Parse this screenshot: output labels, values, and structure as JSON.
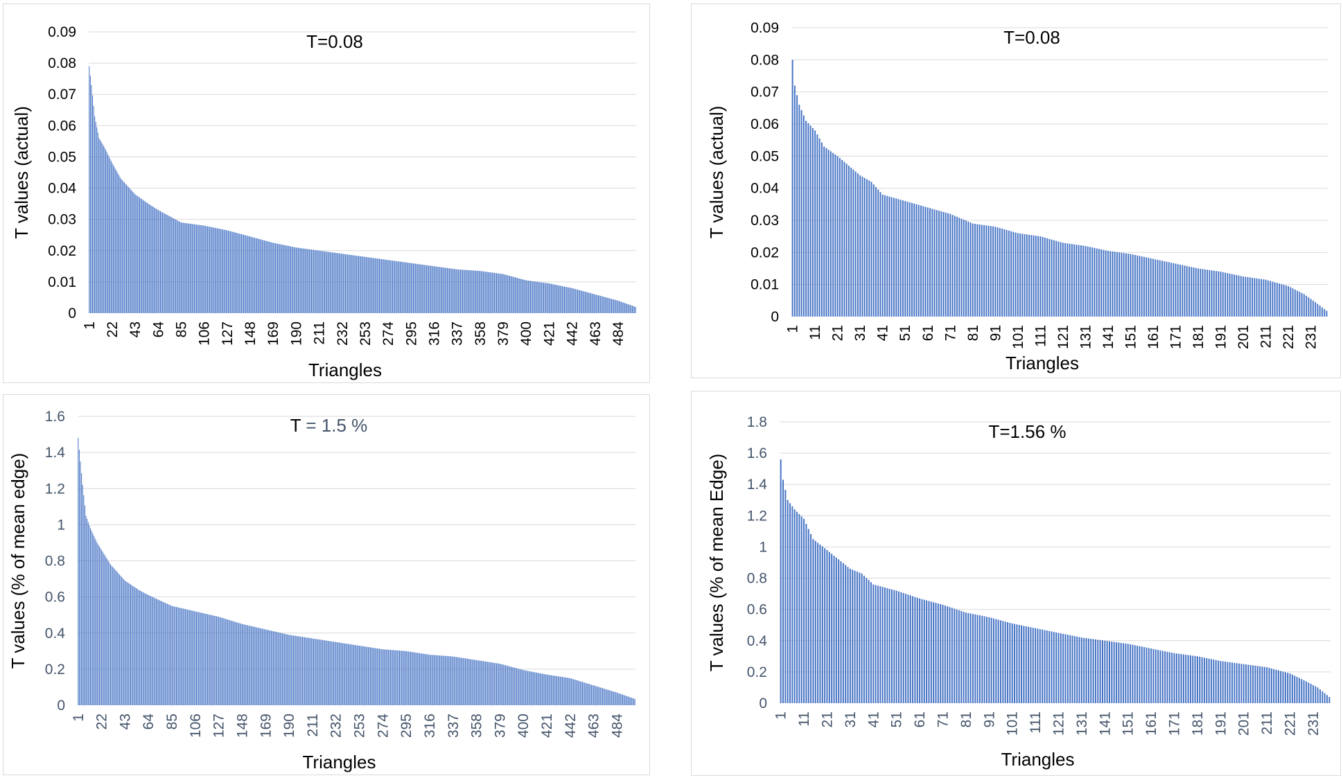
{
  "chart_data": [
    {
      "type": "bar",
      "title": "T=0.08",
      "xlabel": "Triangles",
      "ylabel": "T values (actual)",
      "ylim": [
        0,
        0.09
      ],
      "yticks": [
        "0",
        "0.01",
        "0.02",
        "0.03",
        "0.04",
        "0.05",
        "0.06",
        "0.07",
        "0.08",
        "0.09"
      ],
      "xtick_labels": [
        "1",
        "22",
        "43",
        "64",
        "85",
        "106",
        "127",
        "148",
        "169",
        "190",
        "211",
        "232",
        "253",
        "274",
        "295",
        "316",
        "337",
        "358",
        "379",
        "400",
        "421",
        "442",
        "463",
        "484"
      ],
      "tick_color": "#000000",
      "bar_color": "#4472c4",
      "n_bars": 500,
      "profile": [
        [
          1,
          0.079
        ],
        [
          3,
          0.073
        ],
        [
          6,
          0.063
        ],
        [
          10,
          0.056
        ],
        [
          15,
          0.053
        ],
        [
          22,
          0.048
        ],
        [
          30,
          0.043
        ],
        [
          43,
          0.038
        ],
        [
          55,
          0.035
        ],
        [
          64,
          0.033
        ],
        [
          85,
          0.029
        ],
        [
          106,
          0.028
        ],
        [
          127,
          0.0265
        ],
        [
          148,
          0.0245
        ],
        [
          169,
          0.0225
        ],
        [
          190,
          0.021
        ],
        [
          211,
          0.02
        ],
        [
          232,
          0.019
        ],
        [
          253,
          0.018
        ],
        [
          274,
          0.017
        ],
        [
          295,
          0.016
        ],
        [
          316,
          0.015
        ],
        [
          337,
          0.014
        ],
        [
          358,
          0.0135
        ],
        [
          379,
          0.0125
        ],
        [
          400,
          0.0105
        ],
        [
          421,
          0.0095
        ],
        [
          442,
          0.008
        ],
        [
          463,
          0.006
        ],
        [
          484,
          0.004
        ],
        [
          500,
          0.002
        ]
      ]
    },
    {
      "type": "bar",
      "title": "T=0.08",
      "xlabel": "Triangles",
      "ylabel": "T values (actual)",
      "ylim": [
        0,
        0.09
      ],
      "yticks": [
        "0",
        "0.01",
        "0.02",
        "0.03",
        "0.04",
        "0.05",
        "0.06",
        "0.07",
        "0.08",
        "0.09"
      ],
      "xtick_labels": [
        "1",
        "11",
        "21",
        "31",
        "41",
        "51",
        "61",
        "71",
        "81",
        "91",
        "101",
        "111",
        "121",
        "131",
        "141",
        "151",
        "161",
        "171",
        "181",
        "191",
        "201",
        "211",
        "221",
        "231"
      ],
      "tick_color": "#000000",
      "bar_color": "#4472c4",
      "n_bars": 238,
      "profile": [
        [
          1,
          0.08
        ],
        [
          2,
          0.072
        ],
        [
          4,
          0.066
        ],
        [
          7,
          0.061
        ],
        [
          11,
          0.058
        ],
        [
          15,
          0.053
        ],
        [
          21,
          0.05
        ],
        [
          26,
          0.047
        ],
        [
          31,
          0.044
        ],
        [
          36,
          0.042
        ],
        [
          41,
          0.038
        ],
        [
          51,
          0.036
        ],
        [
          61,
          0.034
        ],
        [
          71,
          0.032
        ],
        [
          81,
          0.029
        ],
        [
          91,
          0.028
        ],
        [
          101,
          0.026
        ],
        [
          111,
          0.025
        ],
        [
          121,
          0.023
        ],
        [
          131,
          0.022
        ],
        [
          141,
          0.0205
        ],
        [
          151,
          0.0195
        ],
        [
          161,
          0.018
        ],
        [
          171,
          0.0165
        ],
        [
          181,
          0.015
        ],
        [
          191,
          0.014
        ],
        [
          201,
          0.0125
        ],
        [
          211,
          0.0115
        ],
        [
          221,
          0.0095
        ],
        [
          228,
          0.007
        ],
        [
          233,
          0.0045
        ],
        [
          238,
          0.0018
        ]
      ]
    },
    {
      "type": "bar",
      "title": "T = 1.5 %",
      "title_parts": [
        "T",
        " = 1.5 %"
      ],
      "xlabel": "Triangles",
      "ylabel": "T values (% of mean edge)",
      "ylim": [
        0,
        1.6
      ],
      "yticks": [
        "0",
        "0.2",
        "0.4",
        "0.6",
        "0.8",
        "1",
        "1.2",
        "1.4",
        "1.6"
      ],
      "xtick_labels": [
        "1",
        "22",
        "43",
        "64",
        "85",
        "106",
        "127",
        "148",
        "169",
        "190",
        "211",
        "232",
        "253",
        "274",
        "295",
        "316",
        "337",
        "358",
        "379",
        "400",
        "421",
        "442",
        "463",
        "484"
      ],
      "tick_color": "#44546a",
      "bar_color": "#4472c4",
      "n_bars": 500,
      "profile": [
        [
          1,
          1.48
        ],
        [
          3,
          1.35
        ],
        [
          5,
          1.22
        ],
        [
          8,
          1.05
        ],
        [
          12,
          0.98
        ],
        [
          18,
          0.9
        ],
        [
          22,
          0.86
        ],
        [
          30,
          0.78
        ],
        [
          43,
          0.69
        ],
        [
          55,
          0.64
        ],
        [
          64,
          0.61
        ],
        [
          85,
          0.55
        ],
        [
          106,
          0.52
        ],
        [
          127,
          0.49
        ],
        [
          148,
          0.45
        ],
        [
          169,
          0.42
        ],
        [
          190,
          0.39
        ],
        [
          211,
          0.37
        ],
        [
          232,
          0.35
        ],
        [
          253,
          0.33
        ],
        [
          274,
          0.31
        ],
        [
          295,
          0.3
        ],
        [
          316,
          0.28
        ],
        [
          337,
          0.27
        ],
        [
          358,
          0.25
        ],
        [
          379,
          0.23
        ],
        [
          400,
          0.195
        ],
        [
          421,
          0.17
        ],
        [
          442,
          0.15
        ],
        [
          463,
          0.11
        ],
        [
          484,
          0.07
        ],
        [
          500,
          0.035
        ]
      ]
    },
    {
      "type": "bar",
      "title": "T=1.56 %",
      "xlabel": "Triangles",
      "ylabel": "T values (% of mean Edge)",
      "ylim": [
        0,
        1.8
      ],
      "yticks": [
        "0",
        "0.2",
        "0.4",
        "0.6",
        "0.8",
        "1",
        "1.2",
        "1.4",
        "1.6",
        "1.8"
      ],
      "xtick_labels": [
        "1",
        "11",
        "21",
        "31",
        "41",
        "51",
        "61",
        "71",
        "81",
        "91",
        "101",
        "111",
        "121",
        "131",
        "141",
        "151",
        "161",
        "171",
        "181",
        "191",
        "201",
        "211",
        "221",
        "231"
      ],
      "tick_color": "#44546a",
      "bar_color": "#4472c4",
      "n_bars": 238,
      "profile": [
        [
          1,
          1.56
        ],
        [
          2,
          1.43
        ],
        [
          4,
          1.3
        ],
        [
          7,
          1.24
        ],
        [
          11,
          1.18
        ],
        [
          15,
          1.05
        ],
        [
          21,
          0.98
        ],
        [
          26,
          0.92
        ],
        [
          31,
          0.86
        ],
        [
          36,
          0.83
        ],
        [
          41,
          0.76
        ],
        [
          51,
          0.72
        ],
        [
          61,
          0.67
        ],
        [
          71,
          0.63
        ],
        [
          81,
          0.58
        ],
        [
          91,
          0.55
        ],
        [
          101,
          0.51
        ],
        [
          111,
          0.48
        ],
        [
          121,
          0.45
        ],
        [
          131,
          0.42
        ],
        [
          141,
          0.4
        ],
        [
          151,
          0.38
        ],
        [
          161,
          0.35
        ],
        [
          171,
          0.32
        ],
        [
          181,
          0.3
        ],
        [
          191,
          0.27
        ],
        [
          201,
          0.25
        ],
        [
          211,
          0.23
        ],
        [
          221,
          0.19
        ],
        [
          228,
          0.14
        ],
        [
          233,
          0.1
        ],
        [
          238,
          0.04
        ]
      ]
    }
  ]
}
